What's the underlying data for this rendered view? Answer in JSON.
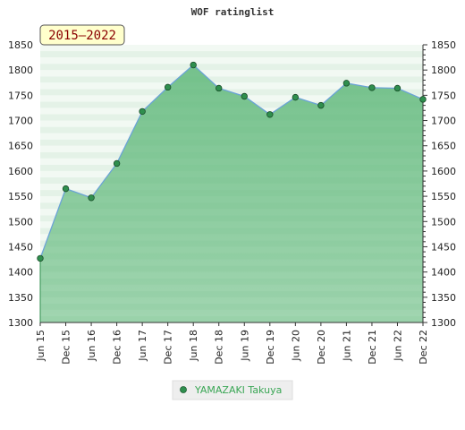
{
  "chart_data": {
    "type": "area",
    "title": "WOF ratinglist",
    "badge": "2015–2022",
    "x": [
      "Jun 15",
      "Dec 15",
      "Jun 16",
      "Dec 16",
      "Jun 17",
      "Dec 17",
      "Jun 18",
      "Dec 18",
      "Jun 19",
      "Dec 19",
      "Jun 20",
      "Dec 20",
      "Jun 21",
      "Dec 21",
      "Jun 22",
      "Dec 22"
    ],
    "series": [
      {
        "name": "YAMAZAKI Takuya",
        "values": [
          1427,
          1565,
          1547,
          1615,
          1718,
          1766,
          1810,
          1764,
          1748,
          1712,
          1746,
          1730,
          1774,
          1765,
          1764,
          1742
        ]
      }
    ],
    "ylim": [
      1300,
      1850
    ],
    "yticks": [
      1300,
      1350,
      1400,
      1450,
      1500,
      1550,
      1600,
      1650,
      1700,
      1750,
      1800,
      1850
    ],
    "grid": true,
    "legend_position": "bottom",
    "colors": {
      "line": "#6ba3d6",
      "fill": "#5fb87a",
      "marker": "#2f8f4e",
      "badge_bg": "#ffffcc",
      "badge_text": "#8b0000"
    }
  }
}
